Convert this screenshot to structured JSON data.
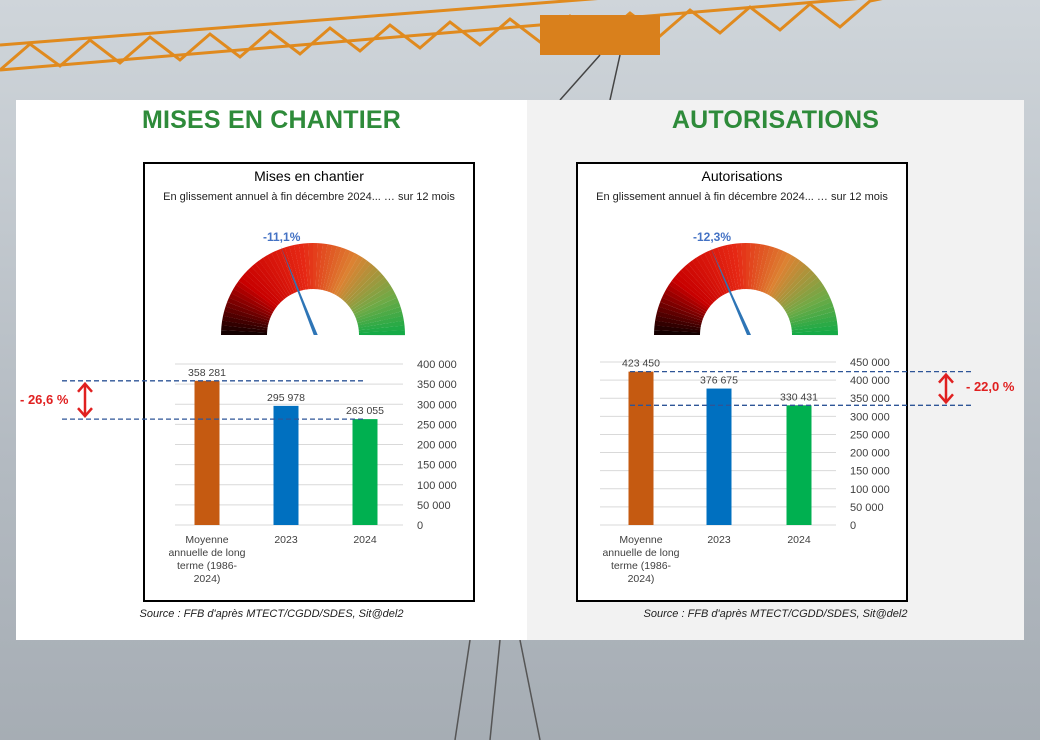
{
  "panels": {
    "left": {
      "heading": "MISES EN CHANTIER",
      "chart_title": "Mises en chantier",
      "chart_subtitle": "En glissement annuel à fin décembre 2024... … sur 12 mois",
      "gauge_label": "-11,1%",
      "source": "Source : FFB d'après MTECT/CGDD/SDES, Sit@del2",
      "diff_label": "- 26,6 %"
    },
    "right": {
      "heading": "AUTORISATIONS",
      "chart_title": "Autorisations",
      "chart_subtitle": "En glissement annuel à fin décembre 2024... … sur 12 mois",
      "gauge_label": "-12,3%",
      "source": "Source : FFB d'après MTECT/CGDD/SDES, Sit@del2",
      "diff_label": "- 22,0 %"
    }
  },
  "colors": {
    "heading": "#2e8b3a",
    "bar1": "#c55a11",
    "bar2": "#0070c0",
    "bar3": "#00b050",
    "gauge_text": "#4472c4",
    "diff": "#e02020"
  },
  "chart_data": [
    {
      "type": "bar",
      "title": "Mises en chantier",
      "categories": [
        "Moyenne annuelle de long terme (1986-2024)",
        "2023",
        "2024"
      ],
      "category_lines": [
        [
          "Moyenne",
          "annuelle de long",
          "terme (1986-",
          "2024)"
        ],
        [
          "2023"
        ],
        [
          "2024"
        ]
      ],
      "values": [
        358281,
        295978,
        263055
      ],
      "value_labels": [
        "358 281",
        "295 978",
        "263 055"
      ],
      "ylim": [
        0,
        400000
      ],
      "yticks": [
        0,
        50000,
        100000,
        150000,
        200000,
        250000,
        300000,
        350000,
        400000
      ],
      "ytick_labels": [
        "0",
        "50 000",
        "100 000",
        "150 000",
        "200 000",
        "250 000",
        "300 000",
        "350 000",
        "400 000"
      ],
      "y_axis_side": "right",
      "gauge": {
        "value_percent": -11.1,
        "label": "-11,1%"
      },
      "annotation": "- 26,6 %"
    },
    {
      "type": "bar",
      "title": "Autorisations",
      "categories": [
        "Moyenne annuelle de long terme (1986-2024)",
        "2023",
        "2024"
      ],
      "category_lines": [
        [
          "Moyenne",
          "annuelle de long",
          "terme (1986-",
          "2024)"
        ],
        [
          "2023"
        ],
        [
          "2024"
        ]
      ],
      "values": [
        423450,
        376675,
        330431
      ],
      "value_labels": [
        "423 450",
        "376 675",
        "330 431"
      ],
      "ylim": [
        0,
        450000
      ],
      "yticks": [
        0,
        50000,
        100000,
        150000,
        200000,
        250000,
        300000,
        350000,
        400000,
        450000
      ],
      "ytick_labels": [
        "0",
        "50 000",
        "100 000",
        "150 000",
        "200 000",
        "250 000",
        "300 000",
        "350 000",
        "400 000",
        "450 000"
      ],
      "y_axis_side": "right",
      "gauge": {
        "value_percent": -12.3,
        "label": "-12,3%"
      },
      "annotation": "- 22,0 %"
    }
  ]
}
